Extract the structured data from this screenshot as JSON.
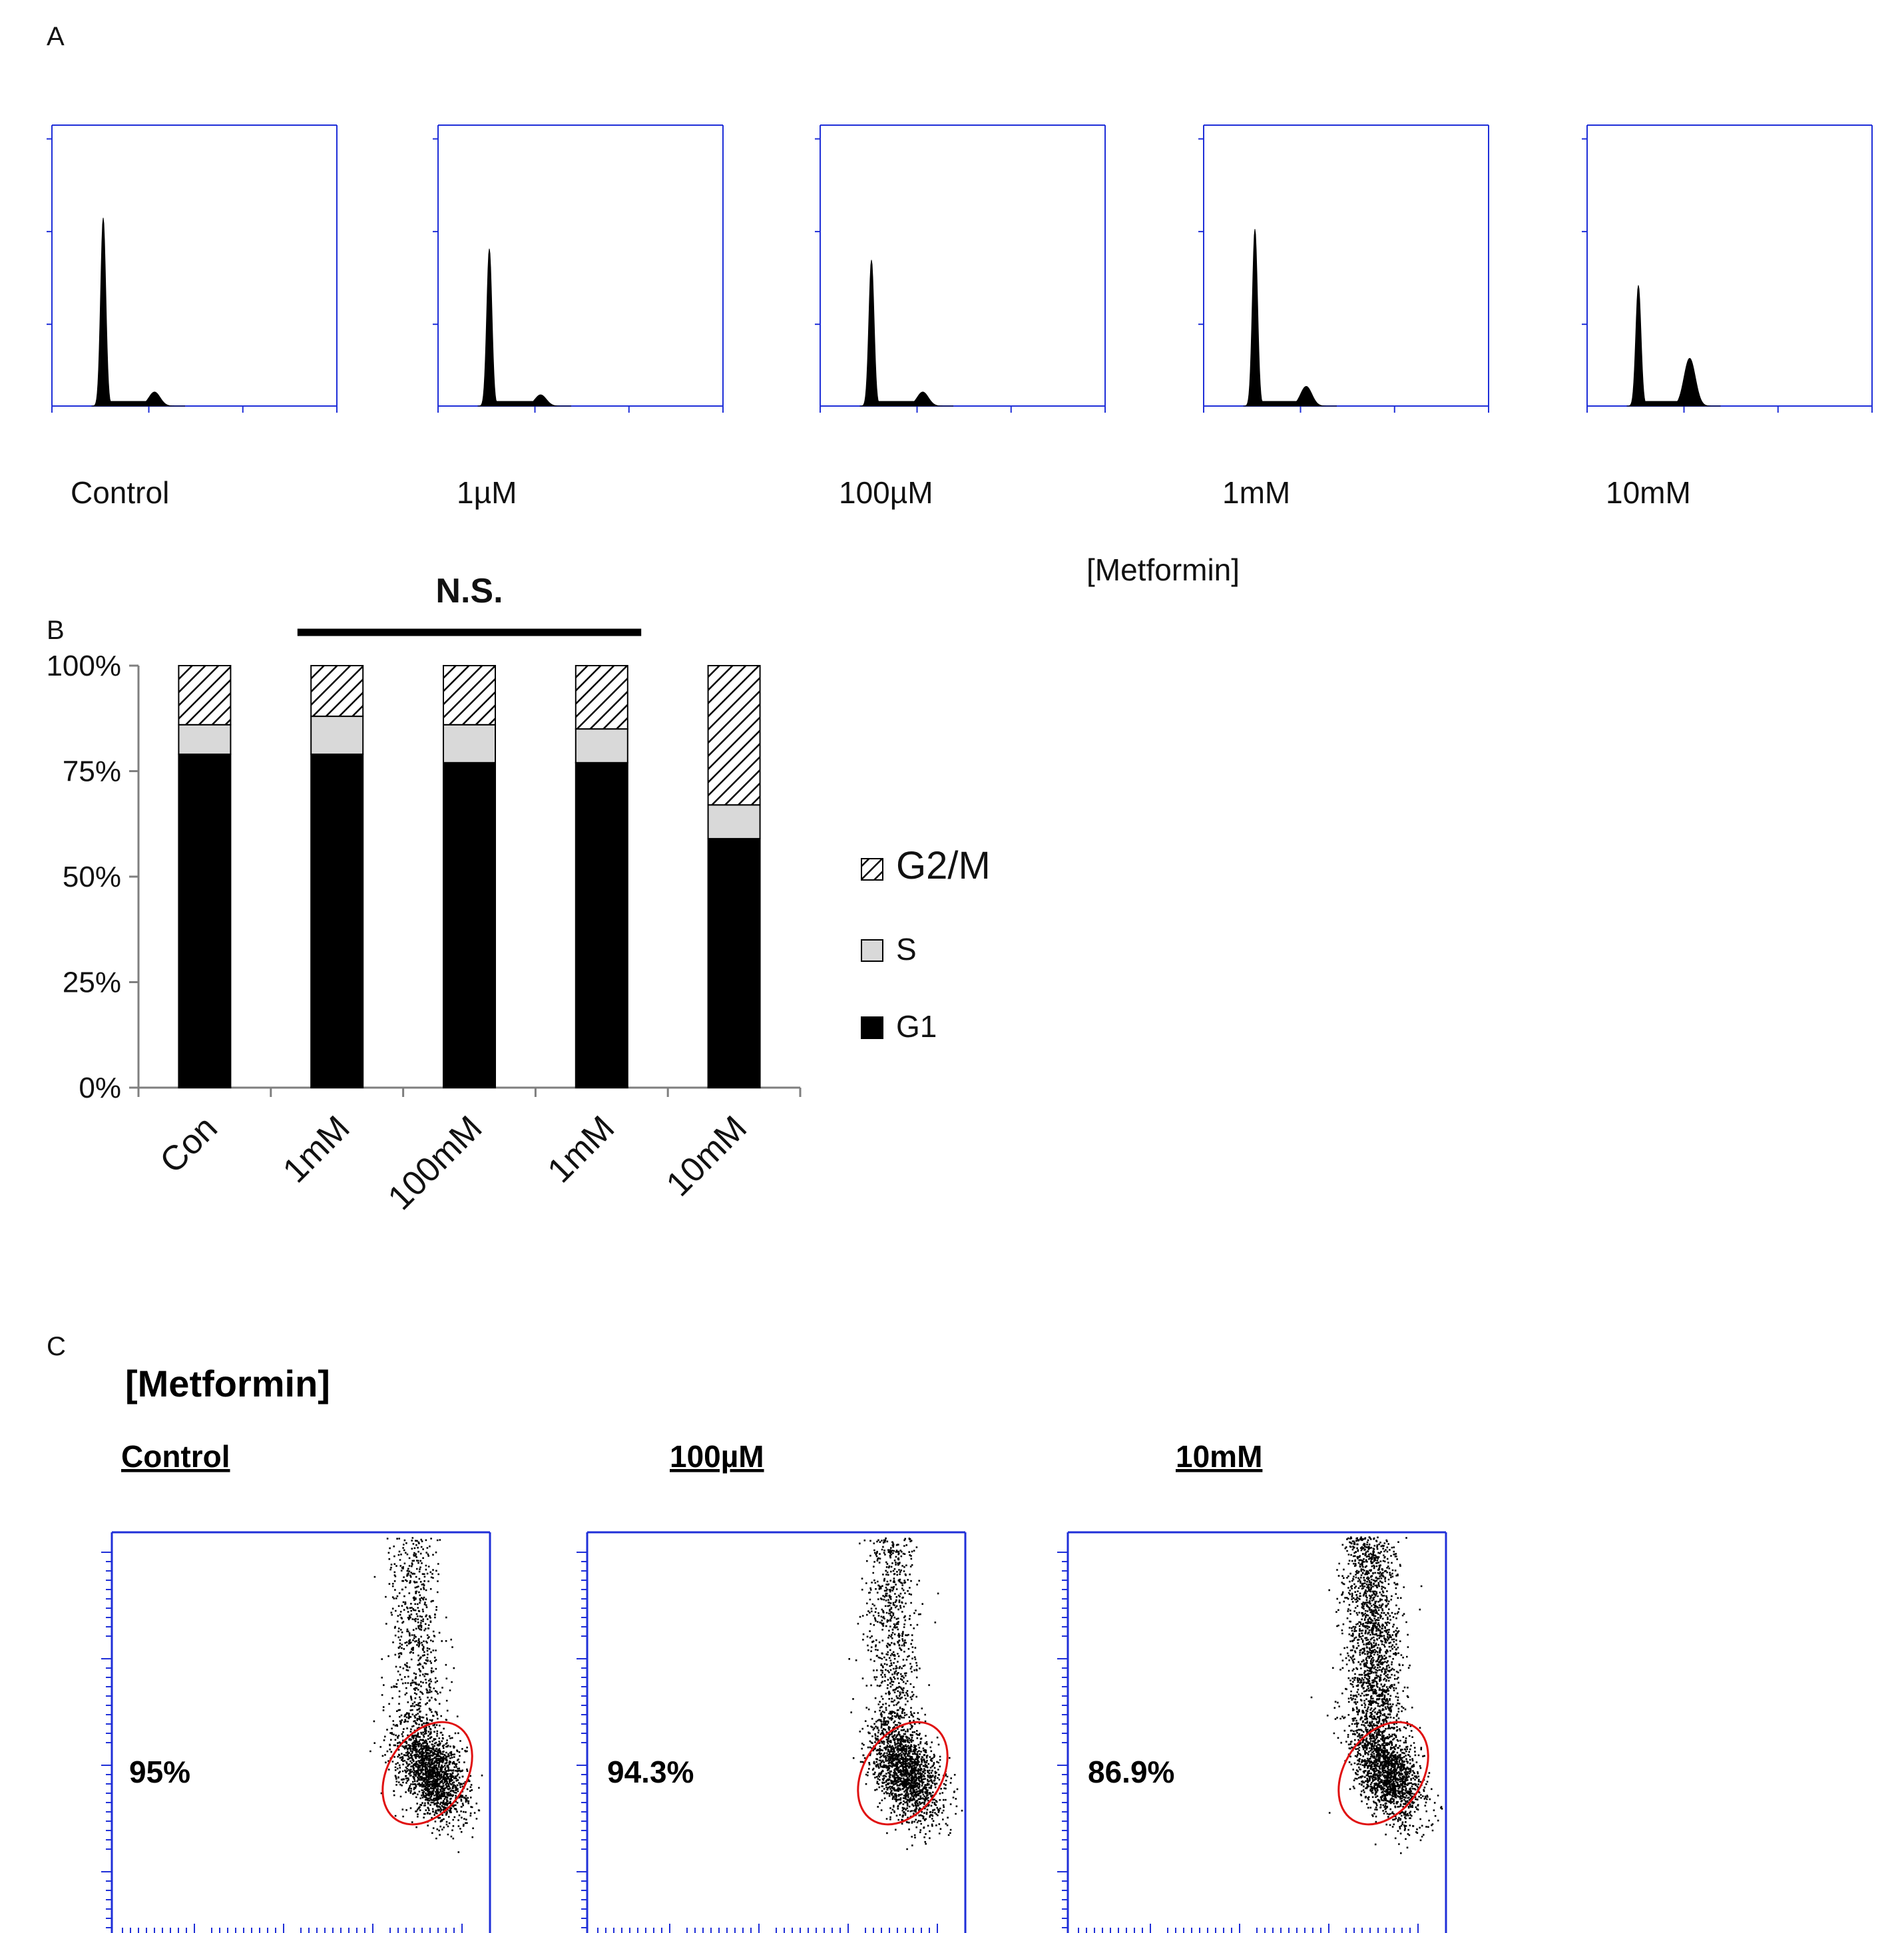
{
  "panel_letters": {
    "a": "A",
    "b": "B",
    "c": "C"
  },
  "colors": {
    "frame": "#1f2fd8",
    "ink": "#000000",
    "s_fill": "#d9d9d9",
    "gate": "#e01010"
  },
  "chart_data": [
    {
      "id": "panel-a",
      "type": "histogram",
      "title": "",
      "subtitle": "[Metformin]",
      "xlabel": "",
      "ylabel": "",
      "panels": [
        {
          "label": "Control",
          "g1_peak": 0.67,
          "g2_peak": 0.05
        },
        {
          "label": "1µM",
          "g1_peak": 0.56,
          "g2_peak": 0.04
        },
        {
          "label": "100µM",
          "g1_peak": 0.52,
          "g2_peak": 0.05
        },
        {
          "label": "1mM",
          "g1_peak": 0.63,
          "g2_peak": 0.07
        },
        {
          "label": "10mM",
          "g1_peak": 0.43,
          "g2_peak": 0.17
        }
      ]
    },
    {
      "id": "panel-b",
      "type": "bar",
      "stacked": true,
      "annotation": "N.S.",
      "categories": [
        "Con",
        "1mM",
        "100mM",
        "1mM",
        "10mM"
      ],
      "series": [
        {
          "name": "G1",
          "key": "g1",
          "values": [
            79,
            79,
            77,
            77,
            59
          ]
        },
        {
          "name": "S",
          "key": "s",
          "values": [
            7,
            9,
            9,
            8,
            8
          ]
        },
        {
          "name": "G2/M",
          "key": "g2",
          "values": [
            14,
            12,
            14,
            15,
            33
          ]
        }
      ],
      "yticks": [
        "0%",
        "25%",
        "50%",
        "75%",
        "100%"
      ],
      "ylim": [
        0,
        100
      ],
      "legend": [
        "G2/M",
        "S",
        "G1"
      ],
      "legend_position": "right",
      "grid": false
    },
    {
      "id": "panel-c",
      "type": "scatter",
      "title": "[Metformin]",
      "panels": [
        {
          "label": "Control",
          "percent": "95%",
          "upper_fraction": 0.05
        },
        {
          "label": "100µM",
          "percent": "94.3%",
          "upper_fraction": 0.057
        },
        {
          "label": "10mM",
          "percent": "86.9%",
          "upper_fraction": 0.131
        }
      ]
    }
  ]
}
